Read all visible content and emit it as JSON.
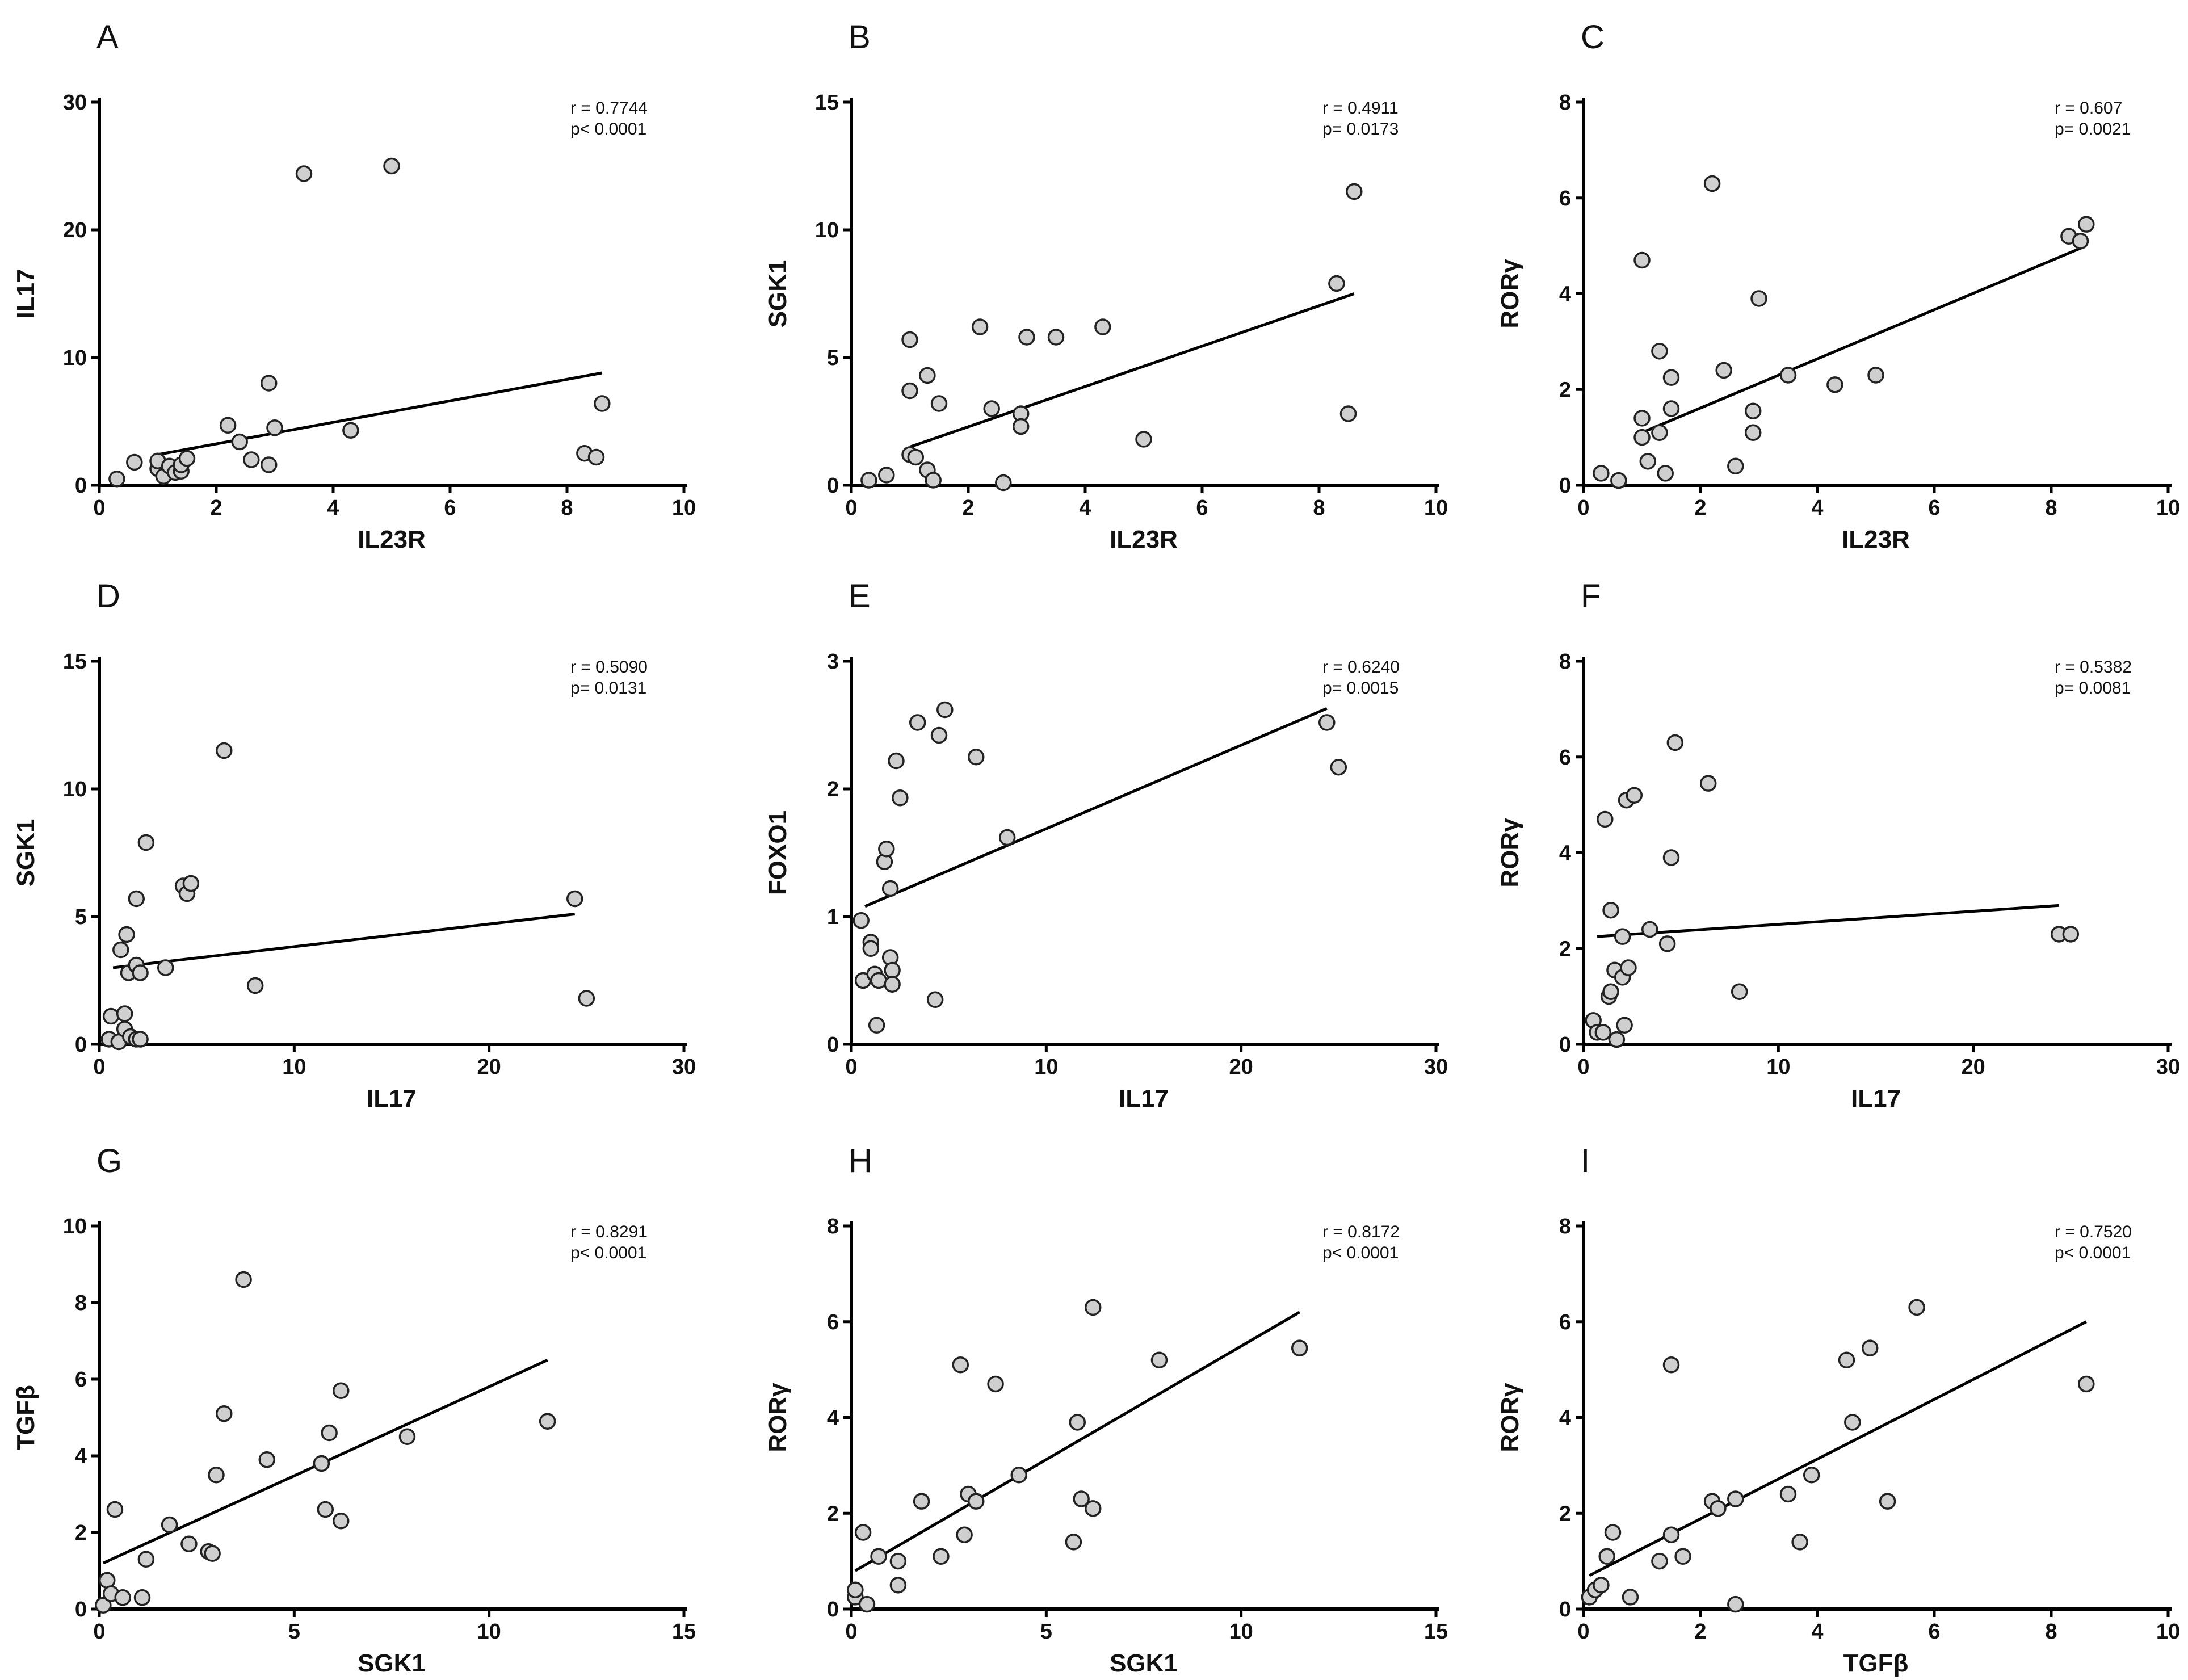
{
  "chart_data": [
    {
      "type": "scatter",
      "panel": "A",
      "xlabel": "IL23R",
      "ylabel": "IL17",
      "xlim": [
        0,
        10
      ],
      "ylim": [
        0,
        30
      ],
      "xticks": [
        "0",
        "2",
        "4",
        "6",
        "8",
        "10"
      ],
      "yticks": [
        "0",
        "10",
        "20",
        "30"
      ],
      "r_text": "r = 0.7744",
      "p_text": "p< 0.0001",
      "fit": [
        [
          1,
          2.4
        ],
        [
          8.6,
          8.8
        ]
      ],
      "points": [
        [
          0.3,
          0.5
        ],
        [
          0.6,
          1.8
        ],
        [
          1,
          1.3
        ],
        [
          1,
          1.9
        ],
        [
          1.1,
          0.7
        ],
        [
          1.2,
          1.5
        ],
        [
          1.3,
          1
        ],
        [
          1.4,
          1.1
        ],
        [
          1.4,
          1.6
        ],
        [
          1.5,
          2.1
        ],
        [
          2.2,
          4.7
        ],
        [
          2.4,
          3.4
        ],
        [
          2.6,
          2
        ],
        [
          2.9,
          1.6
        ],
        [
          2.9,
          8
        ],
        [
          3,
          4.5
        ],
        [
          3.5,
          24.4
        ],
        [
          4.3,
          4.3
        ],
        [
          5,
          25
        ],
        [
          8.3,
          2.5
        ],
        [
          8.5,
          2.2
        ],
        [
          8.6,
          6.4
        ]
      ]
    },
    {
      "type": "scatter",
      "panel": "B",
      "xlabel": "IL23R",
      "ylabel": "SGK1",
      "xlim": [
        0,
        10
      ],
      "ylim": [
        0,
        15
      ],
      "xticks": [
        "0",
        "2",
        "4",
        "6",
        "8",
        "10"
      ],
      "yticks": [
        "0",
        "5",
        "10",
        "15"
      ],
      "r_text": "r = 0.4911",
      "p_text": "p= 0.0173",
      "fit": [
        [
          1,
          1.5
        ],
        [
          8.6,
          7.5
        ]
      ],
      "points": [
        [
          0.3,
          0.2
        ],
        [
          0.6,
          0.4
        ],
        [
          1,
          5.7
        ],
        [
          1,
          3.7
        ],
        [
          1,
          1.2
        ],
        [
          1.1,
          1.1
        ],
        [
          1.3,
          4.3
        ],
        [
          1.3,
          0.6
        ],
        [
          1.4,
          0.2
        ],
        [
          1.5,
          3.2
        ],
        [
          2.2,
          6.2
        ],
        [
          2.4,
          3
        ],
        [
          2.6,
          0.1
        ],
        [
          2.9,
          2.8
        ],
        [
          2.9,
          2.3
        ],
        [
          3,
          5.8
        ],
        [
          3.5,
          5.8
        ],
        [
          4.3,
          6.2
        ],
        [
          5,
          1.8
        ],
        [
          8.3,
          7.9
        ],
        [
          8.5,
          2.8
        ],
        [
          8.6,
          11.5
        ]
      ]
    },
    {
      "type": "scatter",
      "panel": "C",
      "xlabel": "IL23R",
      "ylabel": "RORγ",
      "xlim": [
        0,
        10
      ],
      "ylim": [
        0,
        8
      ],
      "xticks": [
        "0",
        "2",
        "4",
        "6",
        "8",
        "10"
      ],
      "yticks": [
        "0",
        "2",
        "4",
        "6",
        "8"
      ],
      "r_text": "r = 0.607",
      "p_text": "p= 0.0021",
      "fit": [
        [
          1,
          1.1
        ],
        [
          8.6,
          5
        ]
      ],
      "points": [
        [
          0.3,
          0.25
        ],
        [
          0.6,
          0.1
        ],
        [
          1,
          4.7
        ],
        [
          1,
          1.4
        ],
        [
          1,
          1
        ],
        [
          1.1,
          0.5
        ],
        [
          1.3,
          2.8
        ],
        [
          1.3,
          1.1
        ],
        [
          1.4,
          0.25
        ],
        [
          1.5,
          2.25
        ],
        [
          1.5,
          1.6
        ],
        [
          2.2,
          6.3
        ],
        [
          2.4,
          2.4
        ],
        [
          2.6,
          0.4
        ],
        [
          2.9,
          1.55
        ],
        [
          2.9,
          1.1
        ],
        [
          3,
          3.9
        ],
        [
          3.5,
          2.3
        ],
        [
          4.3,
          2.1
        ],
        [
          5,
          2.3
        ],
        [
          8.3,
          5.2
        ],
        [
          8.5,
          5.1
        ],
        [
          8.6,
          5.45
        ]
      ]
    },
    {
      "type": "scatter",
      "panel": "D",
      "xlabel": "IL17",
      "ylabel": "SGK1",
      "xlim": [
        0,
        30
      ],
      "ylim": [
        0,
        15
      ],
      "xticks": [
        "0",
        "10",
        "20",
        "30"
      ],
      "yticks": [
        "0",
        "5",
        "10",
        "15"
      ],
      "r_text": "r = 0.5090",
      "p_text": "p= 0.0131",
      "fit": [
        [
          0.7,
          3
        ],
        [
          24.4,
          5.1
        ]
      ],
      "points": [
        [
          0.5,
          0.2
        ],
        [
          0.6,
          1.1
        ],
        [
          1,
          0.1
        ],
        [
          1.1,
          3.7
        ],
        [
          1.3,
          1.2
        ],
        [
          1.3,
          0.6
        ],
        [
          1.4,
          4.3
        ],
        [
          1.5,
          2.8
        ],
        [
          1.6,
          0.3
        ],
        [
          1.9,
          0.2
        ],
        [
          1.9,
          5.7
        ],
        [
          1.9,
          3.1
        ],
        [
          2.1,
          2.8
        ],
        [
          2.1,
          0.2
        ],
        [
          2.4,
          7.9
        ],
        [
          3.4,
          3
        ],
        [
          4.3,
          6.2
        ],
        [
          4.5,
          5.9
        ],
        [
          4.7,
          6.3
        ],
        [
          6.4,
          11.5
        ],
        [
          8,
          2.3
        ],
        [
          24.4,
          5.7
        ],
        [
          25,
          1.8
        ]
      ]
    },
    {
      "type": "scatter",
      "panel": "E",
      "xlabel": "IL17",
      "ylabel": "FOXO1",
      "xlim": [
        0,
        30
      ],
      "ylim": [
        0,
        3
      ],
      "xticks": [
        "0",
        "10",
        "20",
        "30"
      ],
      "yticks": [
        "0",
        "1",
        "2",
        "3"
      ],
      "r_text": "r = 0.6240",
      "p_text": "p= 0.0015",
      "fit": [
        [
          0.7,
          1.08
        ],
        [
          24.4,
          2.63
        ]
      ],
      "points": [
        [
          0.5,
          0.97
        ],
        [
          0.6,
          0.5
        ],
        [
          1,
          0.8
        ],
        [
          1,
          0.75
        ],
        [
          1.2,
          0.55
        ],
        [
          1.3,
          0.15
        ],
        [
          1.4,
          0.5
        ],
        [
          1.7,
          1.43
        ],
        [
          1.8,
          1.53
        ],
        [
          2,
          1.22
        ],
        [
          2,
          0.68
        ],
        [
          2.1,
          0.58
        ],
        [
          2.1,
          0.47
        ],
        [
          2.3,
          2.22
        ],
        [
          2.5,
          1.93
        ],
        [
          3.4,
          2.52
        ],
        [
          4.3,
          0.35
        ],
        [
          4.5,
          2.42
        ],
        [
          4.8,
          2.62
        ],
        [
          6.4,
          2.25
        ],
        [
          8,
          1.62
        ],
        [
          24.4,
          2.52
        ],
        [
          25,
          2.17
        ]
      ]
    },
    {
      "type": "scatter",
      "panel": "F",
      "xlabel": "IL17",
      "ylabel": "RORγ",
      "xlim": [
        0,
        30
      ],
      "ylim": [
        0,
        8
      ],
      "xticks": [
        "0",
        "10",
        "20",
        "30"
      ],
      "yticks": [
        "0",
        "2",
        "4",
        "6",
        "8"
      ],
      "r_text": "r = 0.5382",
      "p_text": "p= 0.0081",
      "fit": [
        [
          0.7,
          2.25
        ],
        [
          24.4,
          2.9
        ]
      ],
      "points": [
        [
          0.5,
          0.5
        ],
        [
          0.7,
          0.25
        ],
        [
          1,
          0.25
        ],
        [
          1.1,
          4.7
        ],
        [
          1.3,
          1
        ],
        [
          1.4,
          2.8
        ],
        [
          1.4,
          1.1
        ],
        [
          1.6,
          1.55
        ],
        [
          1.7,
          0.1
        ],
        [
          2,
          1.4
        ],
        [
          2,
          2.25
        ],
        [
          2.1,
          0.4
        ],
        [
          2.2,
          5.1
        ],
        [
          2.3,
          1.6
        ],
        [
          2.6,
          5.2
        ],
        [
          3.4,
          2.4
        ],
        [
          4.3,
          2.1
        ],
        [
          4.5,
          3.9
        ],
        [
          4.7,
          6.3
        ],
        [
          6.4,
          5.45
        ],
        [
          8,
          1.1
        ],
        [
          24.4,
          2.3
        ],
        [
          25,
          2.3
        ]
      ]
    },
    {
      "type": "scatter",
      "panel": "G",
      "xlabel": "SGK1",
      "ylabel": "TGFβ",
      "xlim": [
        0,
        15
      ],
      "ylim": [
        0,
        10
      ],
      "xticks": [
        "0",
        "5",
        "10",
        "15"
      ],
      "yticks": [
        "0",
        "2",
        "4",
        "6",
        "8",
        "10"
      ],
      "r_text": "r = 0.8291",
      "p_text": "p< 0.0001",
      "fit": [
        [
          0.1,
          1.2
        ],
        [
          11.5,
          6.5
        ]
      ],
      "points": [
        [
          0.1,
          0.1
        ],
        [
          0.2,
          0.75
        ],
        [
          0.3,
          0.4
        ],
        [
          0.4,
          2.6
        ],
        [
          0.6,
          0.3
        ],
        [
          1.1,
          0.3
        ],
        [
          1.2,
          1.3
        ],
        [
          1.8,
          2.2
        ],
        [
          2.3,
          1.7
        ],
        [
          2.8,
          1.5
        ],
        [
          2.9,
          1.45
        ],
        [
          3,
          3.5
        ],
        [
          3.2,
          5.1
        ],
        [
          3.7,
          8.6
        ],
        [
          4.3,
          3.9
        ],
        [
          5.7,
          3.8
        ],
        [
          5.8,
          2.6
        ],
        [
          5.9,
          4.6
        ],
        [
          6.2,
          2.3
        ],
        [
          6.2,
          5.7
        ],
        [
          7.9,
          4.5
        ],
        [
          11.5,
          4.9
        ]
      ]
    },
    {
      "type": "scatter",
      "panel": "H",
      "xlabel": "SGK1",
      "ylabel": "RORγ",
      "xlim": [
        0,
        15
      ],
      "ylim": [
        0,
        8
      ],
      "xticks": [
        "0",
        "5",
        "10",
        "15"
      ],
      "yticks": [
        "0",
        "2",
        "4",
        "6",
        "8"
      ],
      "r_text": "r = 0.8172",
      "p_text": "p< 0.0001",
      "fit": [
        [
          0.1,
          0.8
        ],
        [
          11.5,
          6.2
        ]
      ],
      "points": [
        [
          0.1,
          0.25
        ],
        [
          0.1,
          0.4
        ],
        [
          0.3,
          1.6
        ],
        [
          0.4,
          0.1
        ],
        [
          0.7,
          1.1
        ],
        [
          1.2,
          0.5
        ],
        [
          1.2,
          1
        ],
        [
          1.8,
          2.25
        ],
        [
          2.3,
          1.1
        ],
        [
          2.8,
          5.1
        ],
        [
          2.9,
          1.55
        ],
        [
          3,
          2.4
        ],
        [
          3.2,
          2.25
        ],
        [
          3.7,
          4.7
        ],
        [
          4.3,
          2.8
        ],
        [
          5.7,
          1.4
        ],
        [
          5.8,
          3.9
        ],
        [
          5.9,
          2.3
        ],
        [
          6.2,
          2.1
        ],
        [
          6.2,
          6.3
        ],
        [
          7.9,
          5.2
        ],
        [
          11.5,
          5.45
        ]
      ]
    },
    {
      "type": "scatter",
      "panel": "I",
      "xlabel": "TGFβ",
      "ylabel": "RORγ",
      "xlim": [
        0,
        10
      ],
      "ylim": [
        0,
        8
      ],
      "xticks": [
        "0",
        "2",
        "4",
        "6",
        "8",
        "10"
      ],
      "yticks": [
        "0",
        "2",
        "4",
        "6",
        "8"
      ],
      "r_text": "r = 0.7520",
      "p_text": "p< 0.0001",
      "fit": [
        [
          0.1,
          0.7
        ],
        [
          8.6,
          6
        ]
      ],
      "points": [
        [
          0.1,
          0.25
        ],
        [
          0.2,
          0.4
        ],
        [
          0.3,
          0.5
        ],
        [
          0.4,
          1.1
        ],
        [
          0.5,
          1.6
        ],
        [
          0.8,
          0.25
        ],
        [
          1.3,
          1
        ],
        [
          1.5,
          1.55
        ],
        [
          1.5,
          5.1
        ],
        [
          1.7,
          1.1
        ],
        [
          2.2,
          2.25
        ],
        [
          2.3,
          2.1
        ],
        [
          2.6,
          0.1
        ],
        [
          2.6,
          2.3
        ],
        [
          3.5,
          2.4
        ],
        [
          3.7,
          1.4
        ],
        [
          3.9,
          2.8
        ],
        [
          4.5,
          5.2
        ],
        [
          4.6,
          3.9
        ],
        [
          4.9,
          5.45
        ],
        [
          5.2,
          2.25
        ],
        [
          5.7,
          6.3
        ],
        [
          8.6,
          4.7
        ]
      ]
    }
  ]
}
